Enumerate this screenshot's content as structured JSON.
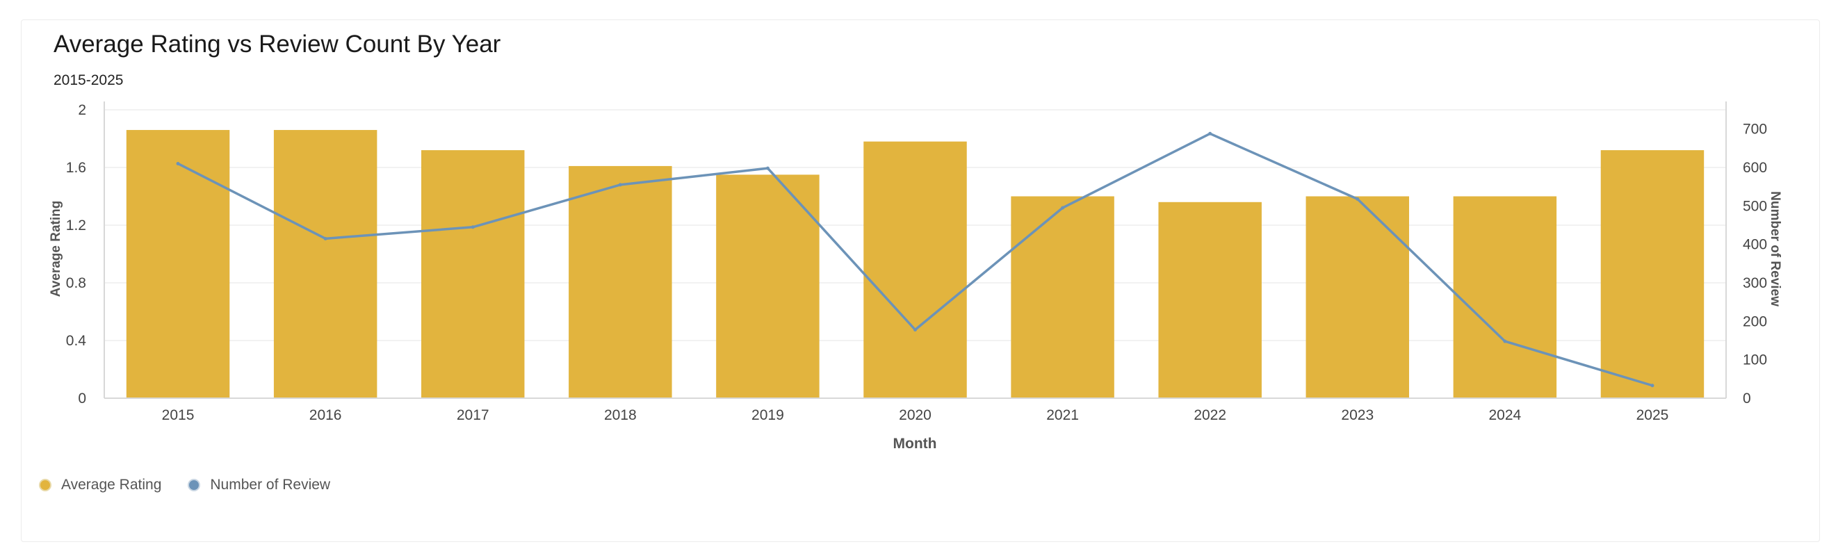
{
  "chart_data": {
    "type": "bar+line",
    "title": "Average Rating vs Review Count By Year",
    "subtitle": "2015-2025",
    "xlabel": "Month",
    "ylabel_left": "Average Rating",
    "ylabel_right": "Number of Review",
    "categories": [
      "2015",
      "2016",
      "2017",
      "2018",
      "2019",
      "2020",
      "2021",
      "2022",
      "2023",
      "2024",
      "2025"
    ],
    "ylim_left": [
      0,
      2
    ],
    "yticks_left": [
      "0",
      "0.4",
      "0.8",
      "1.2",
      "1.6",
      "2"
    ],
    "ylim_right": [
      0,
      750
    ],
    "yticks_right": [
      "0",
      "100",
      "200",
      "300",
      "400",
      "500",
      "600",
      "700"
    ],
    "series": [
      {
        "name": "Average Rating",
        "type": "bar",
        "axis": "left",
        "color": "#E2B43E",
        "values": [
          1.86,
          1.86,
          1.72,
          1.61,
          1.55,
          1.78,
          1.4,
          1.36,
          1.4,
          1.4,
          1.72
        ]
      },
      {
        "name": "Number of Review",
        "type": "line",
        "axis": "right",
        "color": "#6C93B8",
        "values": [
          610,
          415,
          445,
          555,
          598,
          178,
          495,
          688,
          518,
          148,
          33
        ]
      }
    ],
    "grid": true,
    "legend_position": "bottom-left"
  }
}
